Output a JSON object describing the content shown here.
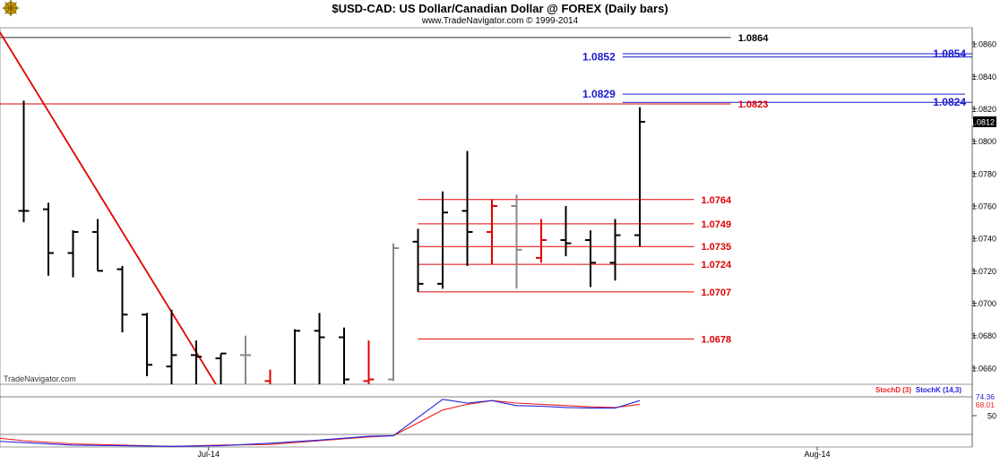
{
  "header": {
    "title": "$USD-CAD:  US Dollar/Canadian Dollar @ FOREX  (Daily bars)",
    "subtitle": "www.TradeNavigator.com © 1999-2014",
    "watermark": "TradeNavigator.com",
    "logo_icon": "ship-wheel-icon"
  },
  "colors": {
    "background": "#ffffff",
    "bar_black": "#000000",
    "bar_red": "#e00000",
    "bar_gray": "#888888",
    "trendline": "#e00000",
    "resistance_red": "#e00000",
    "resistance_blue": "#1a1acc",
    "stoch_k": "#2222dd",
    "stoch_d": "#ee2222",
    "last_price_bg": "#000000"
  },
  "chart_data": [
    {
      "type": "ohlc",
      "name": "price",
      "y_axis": {
        "range": [
          1.065,
          1.087
        ],
        "ticks": [
          1.066,
          1.068,
          1.07,
          1.072,
          1.074,
          1.076,
          1.078,
          1.08,
          1.082,
          1.084,
          1.086
        ],
        "tick_labels": [
          "1.0660",
          "1.0680",
          "1.0700",
          "1.0720",
          "1.0740",
          "1.0760",
          "1.0780",
          "1.0800",
          "1.0820",
          "1.0840",
          "1.0860"
        ],
        "position": "right"
      },
      "x_axis": {
        "labels": [
          {
            "label": "Jul-14",
            "bar_index": 7.5
          },
          {
            "label": "Aug-14",
            "bar_index": 32.2
          }
        ]
      },
      "last_price": {
        "value": 1.0812,
        "label": "1.0812"
      },
      "bars": [
        {
          "o": 1.0757,
          "h": 1.0825,
          "l": 1.075,
          "c": 1.0757,
          "color": "black"
        },
        {
          "o": 1.0758,
          "h": 1.0762,
          "l": 1.0717,
          "c": 1.0731,
          "color": "black"
        },
        {
          "o": 1.0731,
          "h": 1.0745,
          "l": 1.0716,
          "c": 1.0744,
          "color": "black"
        },
        {
          "o": 1.0744,
          "h": 1.0752,
          "l": 1.072,
          "c": 1.072,
          "color": "black"
        },
        {
          "o": 1.0721,
          "h": 1.0723,
          "l": 1.0682,
          "c": 1.0693,
          "color": "black"
        },
        {
          "o": 1.0693,
          "h": 1.0694,
          "l": 1.0655,
          "c": 1.0662,
          "color": "black"
        },
        {
          "o": 1.0661,
          "h": 1.0696,
          "l": 1.0646,
          "c": 1.0668,
          "color": "black"
        },
        {
          "o": 1.0668,
          "h": 1.0677,
          "l": 1.0644,
          "c": 1.0667,
          "color": "black"
        },
        {
          "o": 1.0666,
          "h": 1.0669,
          "l": 1.0643,
          "c": 1.0669,
          "color": "black"
        },
        {
          "o": 1.0668,
          "h": 1.068,
          "l": 1.0642,
          "c": 1.0668,
          "color": "gray"
        },
        {
          "o": 1.0652,
          "h": 1.0659,
          "l": 1.064,
          "c": 1.0646,
          "color": "red"
        },
        {
          "o": 1.0648,
          "h": 1.0684,
          "l": 1.064,
          "c": 1.0683,
          "color": "black"
        },
        {
          "o": 1.0683,
          "h": 1.0694,
          "l": 1.0645,
          "c": 1.0679,
          "color": "black"
        },
        {
          "o": 1.0679,
          "h": 1.0685,
          "l": 1.0648,
          "c": 1.0653,
          "color": "black"
        },
        {
          "o": 1.0652,
          "h": 1.0677,
          "l": 1.064,
          "c": 1.0653,
          "color": "red"
        },
        {
          "o": 1.0653,
          "h": 1.0737,
          "l": 1.0652,
          "c": 1.0734,
          "color": "gray"
        },
        {
          "o": 1.0738,
          "h": 1.0746,
          "l": 1.0707,
          "c": 1.0712,
          "color": "black"
        },
        {
          "o": 1.0712,
          "h": 1.0769,
          "l": 1.0709,
          "c": 1.0756,
          "color": "black"
        },
        {
          "o": 1.0757,
          "h": 1.0794,
          "l": 1.0723,
          "c": 1.0744,
          "color": "black"
        },
        {
          "o": 1.0744,
          "h": 1.0764,
          "l": 1.0724,
          "c": 1.076,
          "color": "red"
        },
        {
          "o": 1.076,
          "h": 1.0767,
          "l": 1.0709,
          "c": 1.0733,
          "color": "gray"
        },
        {
          "o": 1.0728,
          "h": 1.0752,
          "l": 1.0725,
          "c": 1.0739,
          "color": "red"
        },
        {
          "o": 1.0739,
          "h": 1.076,
          "l": 1.0729,
          "c": 1.0737,
          "color": "black"
        },
        {
          "o": 1.0739,
          "h": 1.0745,
          "l": 1.071,
          "c": 1.0725,
          "color": "black"
        },
        {
          "o": 1.0725,
          "h": 1.0752,
          "l": 1.0714,
          "c": 1.0742,
          "color": "black"
        },
        {
          "o": 1.0742,
          "h": 1.0821,
          "l": 1.0735,
          "c": 1.0812,
          "color": "black"
        }
      ],
      "trendline": {
        "from": {
          "bar_index": -1.0,
          "price": 1.0868
        },
        "to": {
          "bar_index": 8.0,
          "price": 1.0645
        }
      },
      "levels": [
        {
          "value": 1.0864,
          "label": "1.0864",
          "color": "black",
          "from_bar": -1.0,
          "to_bar": 28.7,
          "label_pos": "line-end"
        },
        {
          "value": 1.0854,
          "label": "1.0854",
          "color": "blue",
          "from_bar": 24.3,
          "to_bar": 38.7,
          "label_pos": "right"
        },
        {
          "value": 1.0852,
          "label": "1.0852",
          "color": "blue",
          "from_bar": 24.3,
          "to_bar": 38.7,
          "label_pos": "left"
        },
        {
          "value": 1.0829,
          "label": "1.0829",
          "color": "blue",
          "from_bar": 24.3,
          "to_bar": 38.2,
          "label_pos": "left"
        },
        {
          "value": 1.0824,
          "label": "1.0824",
          "color": "blue",
          "from_bar": 24.3,
          "to_bar": 38.7,
          "label_pos": "right"
        },
        {
          "value": 1.0823,
          "label": "1.0823",
          "color": "red",
          "from_bar": -1.0,
          "to_bar": 28.7,
          "label_pos": "line-end"
        },
        {
          "value": 1.0764,
          "label": "1.0764",
          "color": "red",
          "from_bar": 16.0,
          "to_bar": 27.2,
          "label_pos": "line-end"
        },
        {
          "value": 1.0749,
          "label": "1.0749",
          "color": "red",
          "from_bar": 16.0,
          "to_bar": 27.2,
          "label_pos": "line-end"
        },
        {
          "value": 1.0735,
          "label": "1.0735",
          "color": "red",
          "from_bar": 16.0,
          "to_bar": 27.2,
          "label_pos": "line-end"
        },
        {
          "value": 1.0724,
          "label": "1.0724",
          "color": "red",
          "from_bar": 16.0,
          "to_bar": 27.2,
          "label_pos": "line-end"
        },
        {
          "value": 1.0707,
          "label": "1.0707",
          "color": "red",
          "from_bar": 16.0,
          "to_bar": 27.2,
          "label_pos": "line-end"
        },
        {
          "value": 1.0678,
          "label": "1.0678",
          "color": "red",
          "from_bar": 16.0,
          "to_bar": 27.2,
          "label_pos": "line-end"
        }
      ]
    },
    {
      "type": "line",
      "name": "stochastic",
      "legend": [
        "StochD (3)",
        "StochK (14,3)"
      ],
      "legend_placement": "top-right",
      "y_axis": {
        "range": [
          0,
          100
        ],
        "ticks": [
          50
        ],
        "tick_labels": [
          "50"
        ],
        "reference_lines": [
          20,
          80
        ]
      },
      "value_labels": [
        {
          "value": 74.36,
          "label": "74.36",
          "series": "StochK"
        },
        {
          "value": 68.01,
          "label": "68.01",
          "series": "StochD"
        }
      ],
      "series": [
        {
          "name": "StochK (14,3)",
          "color": "blue",
          "bar_index": [
            -1,
            0,
            2,
            4,
            6,
            8,
            10,
            12,
            14,
            15,
            17,
            18,
            19,
            20,
            21,
            22,
            23,
            24,
            25
          ],
          "values": [
            9,
            7,
            3,
            2,
            1,
            2,
            6,
            11,
            17,
            18,
            76,
            70,
            74,
            66,
            65,
            63,
            62,
            62,
            74
          ]
        },
        {
          "name": "StochD (3)",
          "color": "red",
          "bar_index": [
            -1,
            0,
            2,
            4,
            6,
            8,
            10,
            12,
            14,
            15,
            17,
            18,
            19,
            20,
            21,
            22,
            23,
            24,
            25
          ],
          "values": [
            14,
            10,
            5,
            3,
            1,
            3,
            4,
            10,
            16,
            18,
            59,
            68,
            74,
            70,
            68,
            66,
            64,
            63,
            68
          ]
        }
      ]
    }
  ]
}
